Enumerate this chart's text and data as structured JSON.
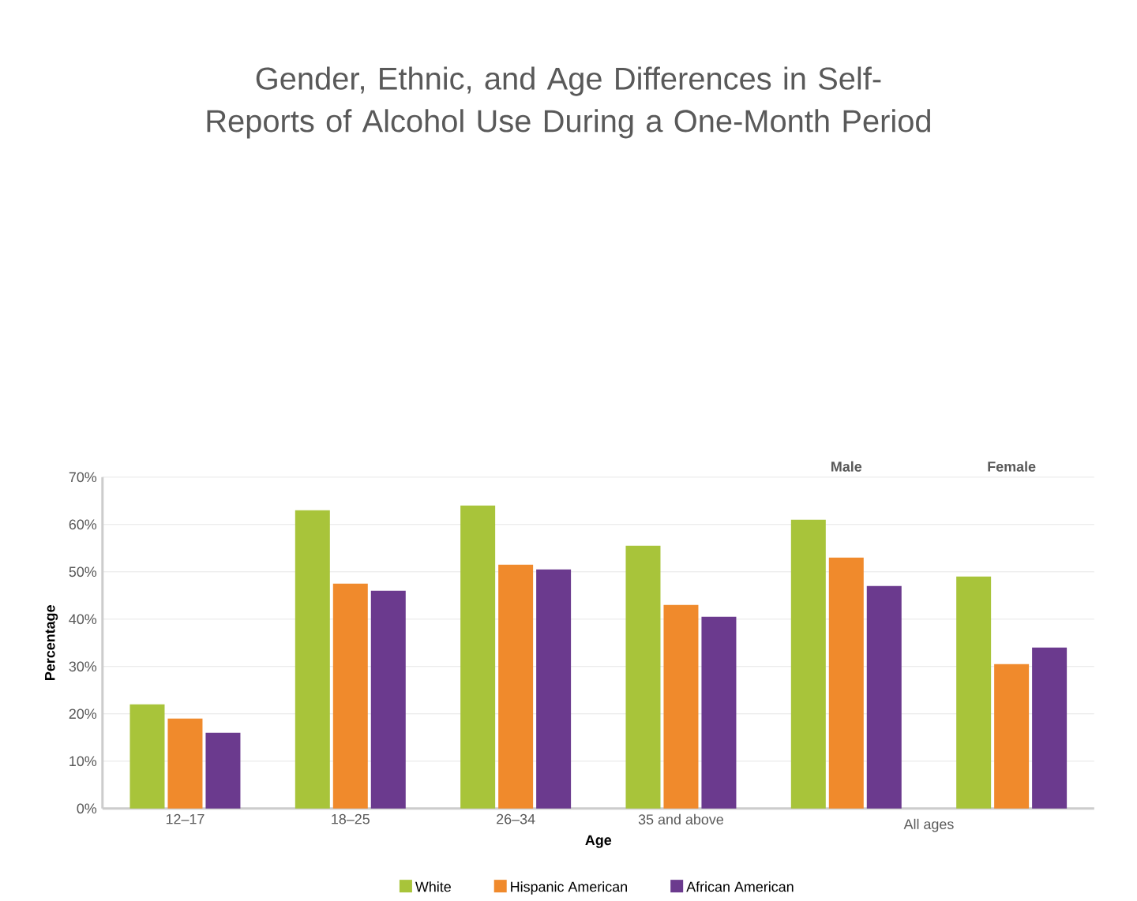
{
  "chart_data": {
    "type": "bar",
    "title": "Gender, Ethnic, and Age Differences in Self-Reports of Alcohol Use During a One-Month Period",
    "xlabel": "Age",
    "ylabel": "Percentage",
    "categories": [
      "12–17",
      "18–25",
      "26–34",
      "35 and above",
      "Male",
      "Female"
    ],
    "series": [
      {
        "name": "White",
        "color": "#a8c43a",
        "values": [
          22,
          63,
          64,
          55.5,
          61,
          49
        ]
      },
      {
        "name": "Hispanic American",
        "color": "#f08a2c",
        "values": [
          19,
          47.5,
          51.5,
          43,
          53,
          30.5
        ]
      },
      {
        "name": "African American",
        "color": "#6b3a8e",
        "values": [
          16,
          46,
          50.5,
          40.5,
          47,
          34
        ]
      }
    ],
    "annotations": [
      "All ages"
    ],
    "ylim": [
      0,
      70
    ],
    "yticks": [
      {
        "value": 0,
        "label": "0%"
      },
      {
        "value": 10,
        "label": "10%"
      },
      {
        "value": 20,
        "label": "20%"
      },
      {
        "value": 30,
        "label": "30%"
      },
      {
        "value": 40,
        "label": "40%"
      },
      {
        "value": 50,
        "label": "50%"
      },
      {
        "value": 60,
        "label": "60%"
      },
      {
        "value": 70,
        "label": "70%"
      }
    ],
    "grid": "y",
    "legend": "bottom"
  }
}
